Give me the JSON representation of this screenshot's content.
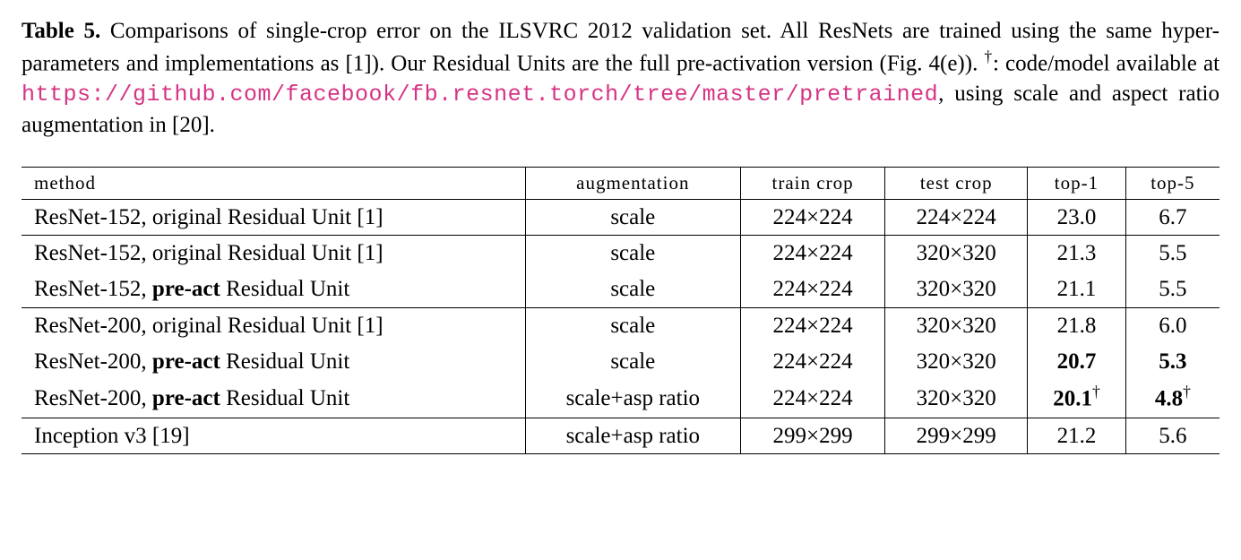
{
  "caption": {
    "label": "Table 5.",
    "text_before_dagger": " Comparisons of single-crop error on the ILSVRC 2012 validation set. All ResNets are trained using the same hyper-parameters and implementations as [1]). Our Residual Units are the full pre-activation version (Fig. 4(e)). ",
    "dagger": "†",
    "text_after_dagger": ": code/model available at ",
    "url": "https://github.com/facebook/fb.resnet.torch/tree/master/pretrained",
    "text_after_url": ", using scale and aspect ratio augmentation in [20].",
    "url_color": "#d63384"
  },
  "table": {
    "type": "table",
    "columns": [
      {
        "key": "method",
        "label": "method",
        "align": "left"
      },
      {
        "key": "augmentation",
        "label": "augmentation",
        "align": "center"
      },
      {
        "key": "train_crop",
        "label": "train crop",
        "align": "center"
      },
      {
        "key": "test_crop",
        "label": "test crop",
        "align": "center"
      },
      {
        "key": "top1",
        "label": "top-1",
        "align": "center"
      },
      {
        "key": "top5",
        "label": "top-5",
        "align": "center"
      }
    ],
    "groups": [
      {
        "rows": [
          {
            "method_pre": "ResNet-152, original Residual Unit [1]",
            "method_bold": "",
            "method_post": "",
            "augmentation": "scale",
            "train_crop": "224×224",
            "test_crop": "224×224",
            "top1": "23.0",
            "top1_bold": false,
            "top1_dag": false,
            "top5": "6.7",
            "top5_bold": false,
            "top5_dag": false
          }
        ]
      },
      {
        "rows": [
          {
            "method_pre": "ResNet-152, original Residual Unit [1]",
            "method_bold": "",
            "method_post": "",
            "augmentation": "scale",
            "train_crop": "224×224",
            "test_crop": "320×320",
            "top1": "21.3",
            "top1_bold": false,
            "top1_dag": false,
            "top5": "5.5",
            "top5_bold": false,
            "top5_dag": false
          },
          {
            "method_pre": "ResNet-152, ",
            "method_bold": "pre-act",
            "method_post": " Residual Unit",
            "augmentation": "scale",
            "train_crop": "224×224",
            "test_crop": "320×320",
            "top1": "21.1",
            "top1_bold": false,
            "top1_dag": false,
            "top5": "5.5",
            "top5_bold": false,
            "top5_dag": false
          }
        ]
      },
      {
        "rows": [
          {
            "method_pre": "ResNet-200, original Residual Unit [1]",
            "method_bold": "",
            "method_post": "",
            "augmentation": "scale",
            "train_crop": "224×224",
            "test_crop": "320×320",
            "top1": "21.8",
            "top1_bold": false,
            "top1_dag": false,
            "top5": "6.0",
            "top5_bold": false,
            "top5_dag": false
          },
          {
            "method_pre": "ResNet-200, ",
            "method_bold": "pre-act",
            "method_post": " Residual Unit",
            "augmentation": "scale",
            "train_crop": "224×224",
            "test_crop": "320×320",
            "top1": "20.7",
            "top1_bold": true,
            "top1_dag": false,
            "top5": "5.3",
            "top5_bold": true,
            "top5_dag": false
          },
          {
            "method_pre": "ResNet-200, ",
            "method_bold": "pre-act",
            "method_post": " Residual Unit",
            "augmentation": "scale+asp ratio",
            "train_crop": "224×224",
            "test_crop": "320×320",
            "top1": "20.1",
            "top1_bold": true,
            "top1_dag": true,
            "top5": "4.8",
            "top5_bold": true,
            "top5_dag": true
          }
        ]
      },
      {
        "rows": [
          {
            "method_pre": "Inception v3 [19]",
            "method_bold": "",
            "method_post": "",
            "augmentation": "scale+asp ratio",
            "train_crop": "299×299",
            "test_crop": "299×299",
            "top1": "21.2",
            "top1_bold": false,
            "top1_dag": false,
            "top5": "5.6",
            "top5_bold": false,
            "top5_dag": false
          }
        ]
      }
    ],
    "border_color": "#000000",
    "header_fontsize": 21,
    "body_fontsize": 25
  }
}
